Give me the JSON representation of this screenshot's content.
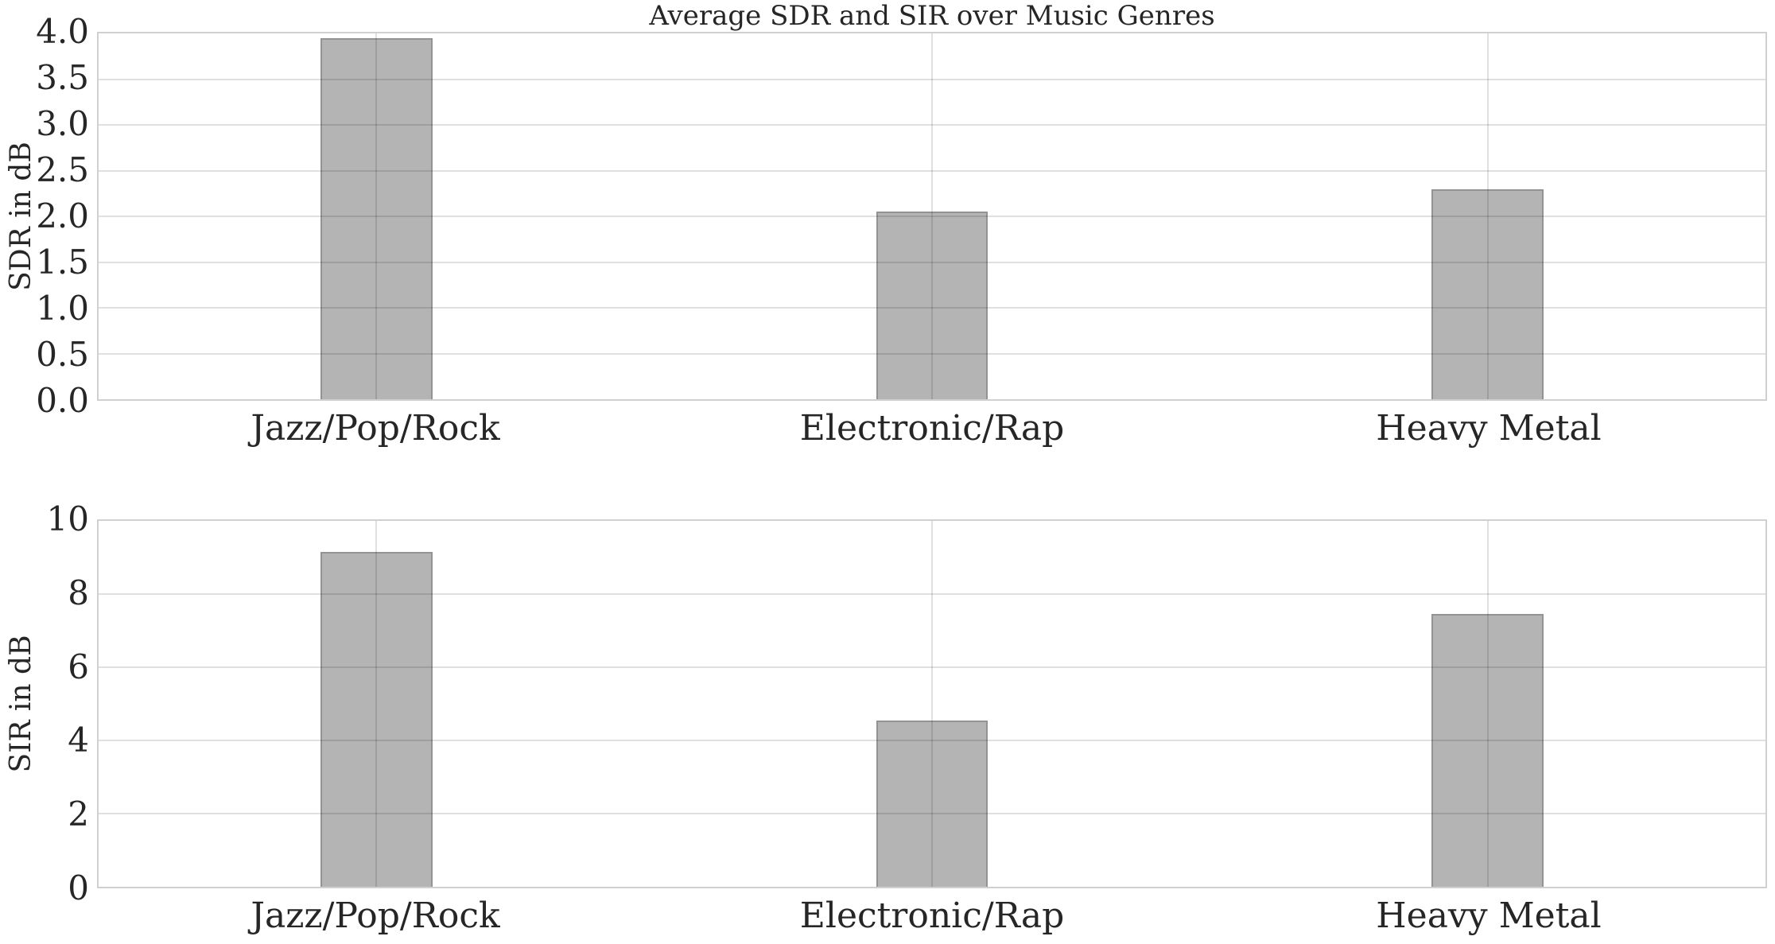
{
  "figure": {
    "title": "Average SDR and SIR over Music Genres"
  },
  "colors": {
    "background": "#ffffff",
    "bar_fill": "#b4b4b4",
    "bar_edge": "#939393",
    "grid_overlay": "rgba(0,0,0,0.12)",
    "spine": "#d0d0d0",
    "text": "#262626"
  },
  "chart_data": [
    {
      "type": "bar",
      "title": "Average SDR and SIR over Music Genres",
      "categories": [
        "Jazz/Pop/Rock",
        "Electronic/Rap",
        "Heavy Metal"
      ],
      "values": [
        3.95,
        2.05,
        2.3
      ],
      "xlabel": "",
      "ylabel": "SDR in dB",
      "ylim": [
        0,
        4
      ],
      "yticks": [
        0.0,
        0.5,
        1.0,
        1.5,
        2.0,
        2.5,
        3.0,
        3.5,
        4.0
      ],
      "ytick_labels": [
        "0.0",
        "0.5",
        "1.0",
        "1.5",
        "2.0",
        "2.5",
        "3.0",
        "3.5",
        "4.0"
      ],
      "grid": "horizontal gridlines at every tick plus vertical gridline at each category center, drawn over bars",
      "legend": "none",
      "bar_color": "#b4b4b4"
    },
    {
      "type": "bar",
      "title": "",
      "categories": [
        "Jazz/Pop/Rock",
        "Electronic/Rap",
        "Heavy Metal"
      ],
      "values": [
        9.15,
        4.55,
        7.45
      ],
      "xlabel": "",
      "ylabel": "SIR in dB",
      "ylim": [
        0,
        10
      ],
      "yticks": [
        0,
        2,
        4,
        6,
        8,
        10
      ],
      "ytick_labels": [
        "0",
        "2",
        "4",
        "6",
        "8",
        "10"
      ],
      "grid": "horizontal gridlines at every tick plus vertical gridline at each category center, drawn over bars",
      "legend": "none",
      "bar_color": "#b4b4b4"
    }
  ]
}
